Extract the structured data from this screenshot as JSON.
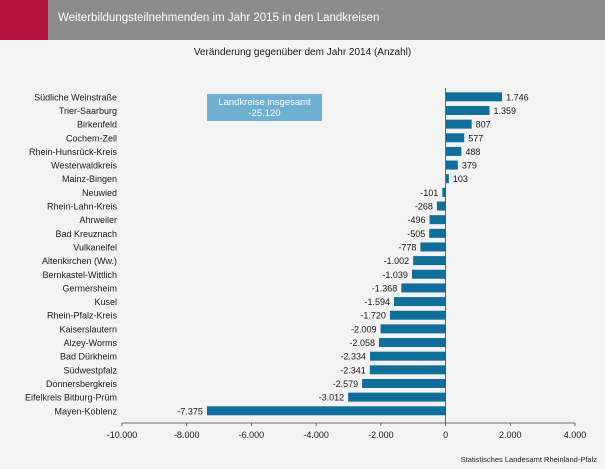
{
  "header": {
    "title": "Weiterbildungsteilnehmenden im Jahr 2015 in den Landkreisen"
  },
  "subtitle": "Veränderung gegenüber dem Jahr 2014 (Anzahl)",
  "note": {
    "line1": "Landkreise insgesamt",
    "line2": "-25.120"
  },
  "source": "Statistisches Landesamt Rheinland-Pfalz",
  "colors": {
    "bar": "#0f6f9a",
    "header": "#8c8c8c",
    "accent": "#b5123b",
    "note": "#6fb0d2"
  },
  "chart_data": {
    "type": "bar",
    "orientation": "horizontal",
    "title": "Veränderung gegenüber dem Jahr 2014 (Anzahl)",
    "categories": [
      "Südliche Weinstraße",
      "Trier-Saarburg",
      "Birkenfeld",
      "Cochem-Zell",
      "Rhein-Hunsrück-Kreis",
      "Westerwaldkreis",
      "Mainz-Bingen",
      "Neuwied",
      "Rhein-Lahn-Kreis",
      "Ahrweiler",
      "Bad Kreuznach",
      "Vulkaneifel",
      "Altenkirchen (Ww.)",
      "Bernkastel-Wittlich",
      "Germersheim",
      "Kusel",
      "Rhein-Pfalz-Kreis",
      "Kaiserslautern",
      "Alzey-Worms",
      "Bad Dürkheim",
      "Südwestpfalz",
      "Donnersbergkreis",
      "Eifelkreis Bitburg-Prüm",
      "Mayen-Koblenz"
    ],
    "values": [
      1746,
      1359,
      807,
      577,
      488,
      379,
      103,
      -101,
      -268,
      -496,
      -505,
      -778,
      -1002,
      -1039,
      -1368,
      -1594,
      -1720,
      -2009,
      -2058,
      -2334,
      -2341,
      -2579,
      -3012,
      -7375
    ],
    "value_labels": [
      "1.746",
      "1.359",
      "807",
      "577",
      "488",
      "379",
      "103",
      "-101",
      "-268",
      "-496",
      "-505",
      "-778",
      "-1.002",
      "-1.039",
      "-1.368",
      "-1.594",
      "-1.720",
      "-2.009",
      "-2.058",
      "-2.334",
      "-2.341",
      "-2.579",
      "-3.012",
      "-7.375"
    ],
    "xlim": [
      -10000,
      4000
    ],
    "xticks": [
      -10000,
      -8000,
      -6000,
      -4000,
      -2000,
      0,
      2000,
      4000
    ],
    "xtick_labels": [
      "-10.000",
      "-8.000",
      "-6.000",
      "-4.000",
      "-2.000",
      "0",
      "2.000",
      "4.000"
    ],
    "grid": false,
    "legend": "none"
  }
}
